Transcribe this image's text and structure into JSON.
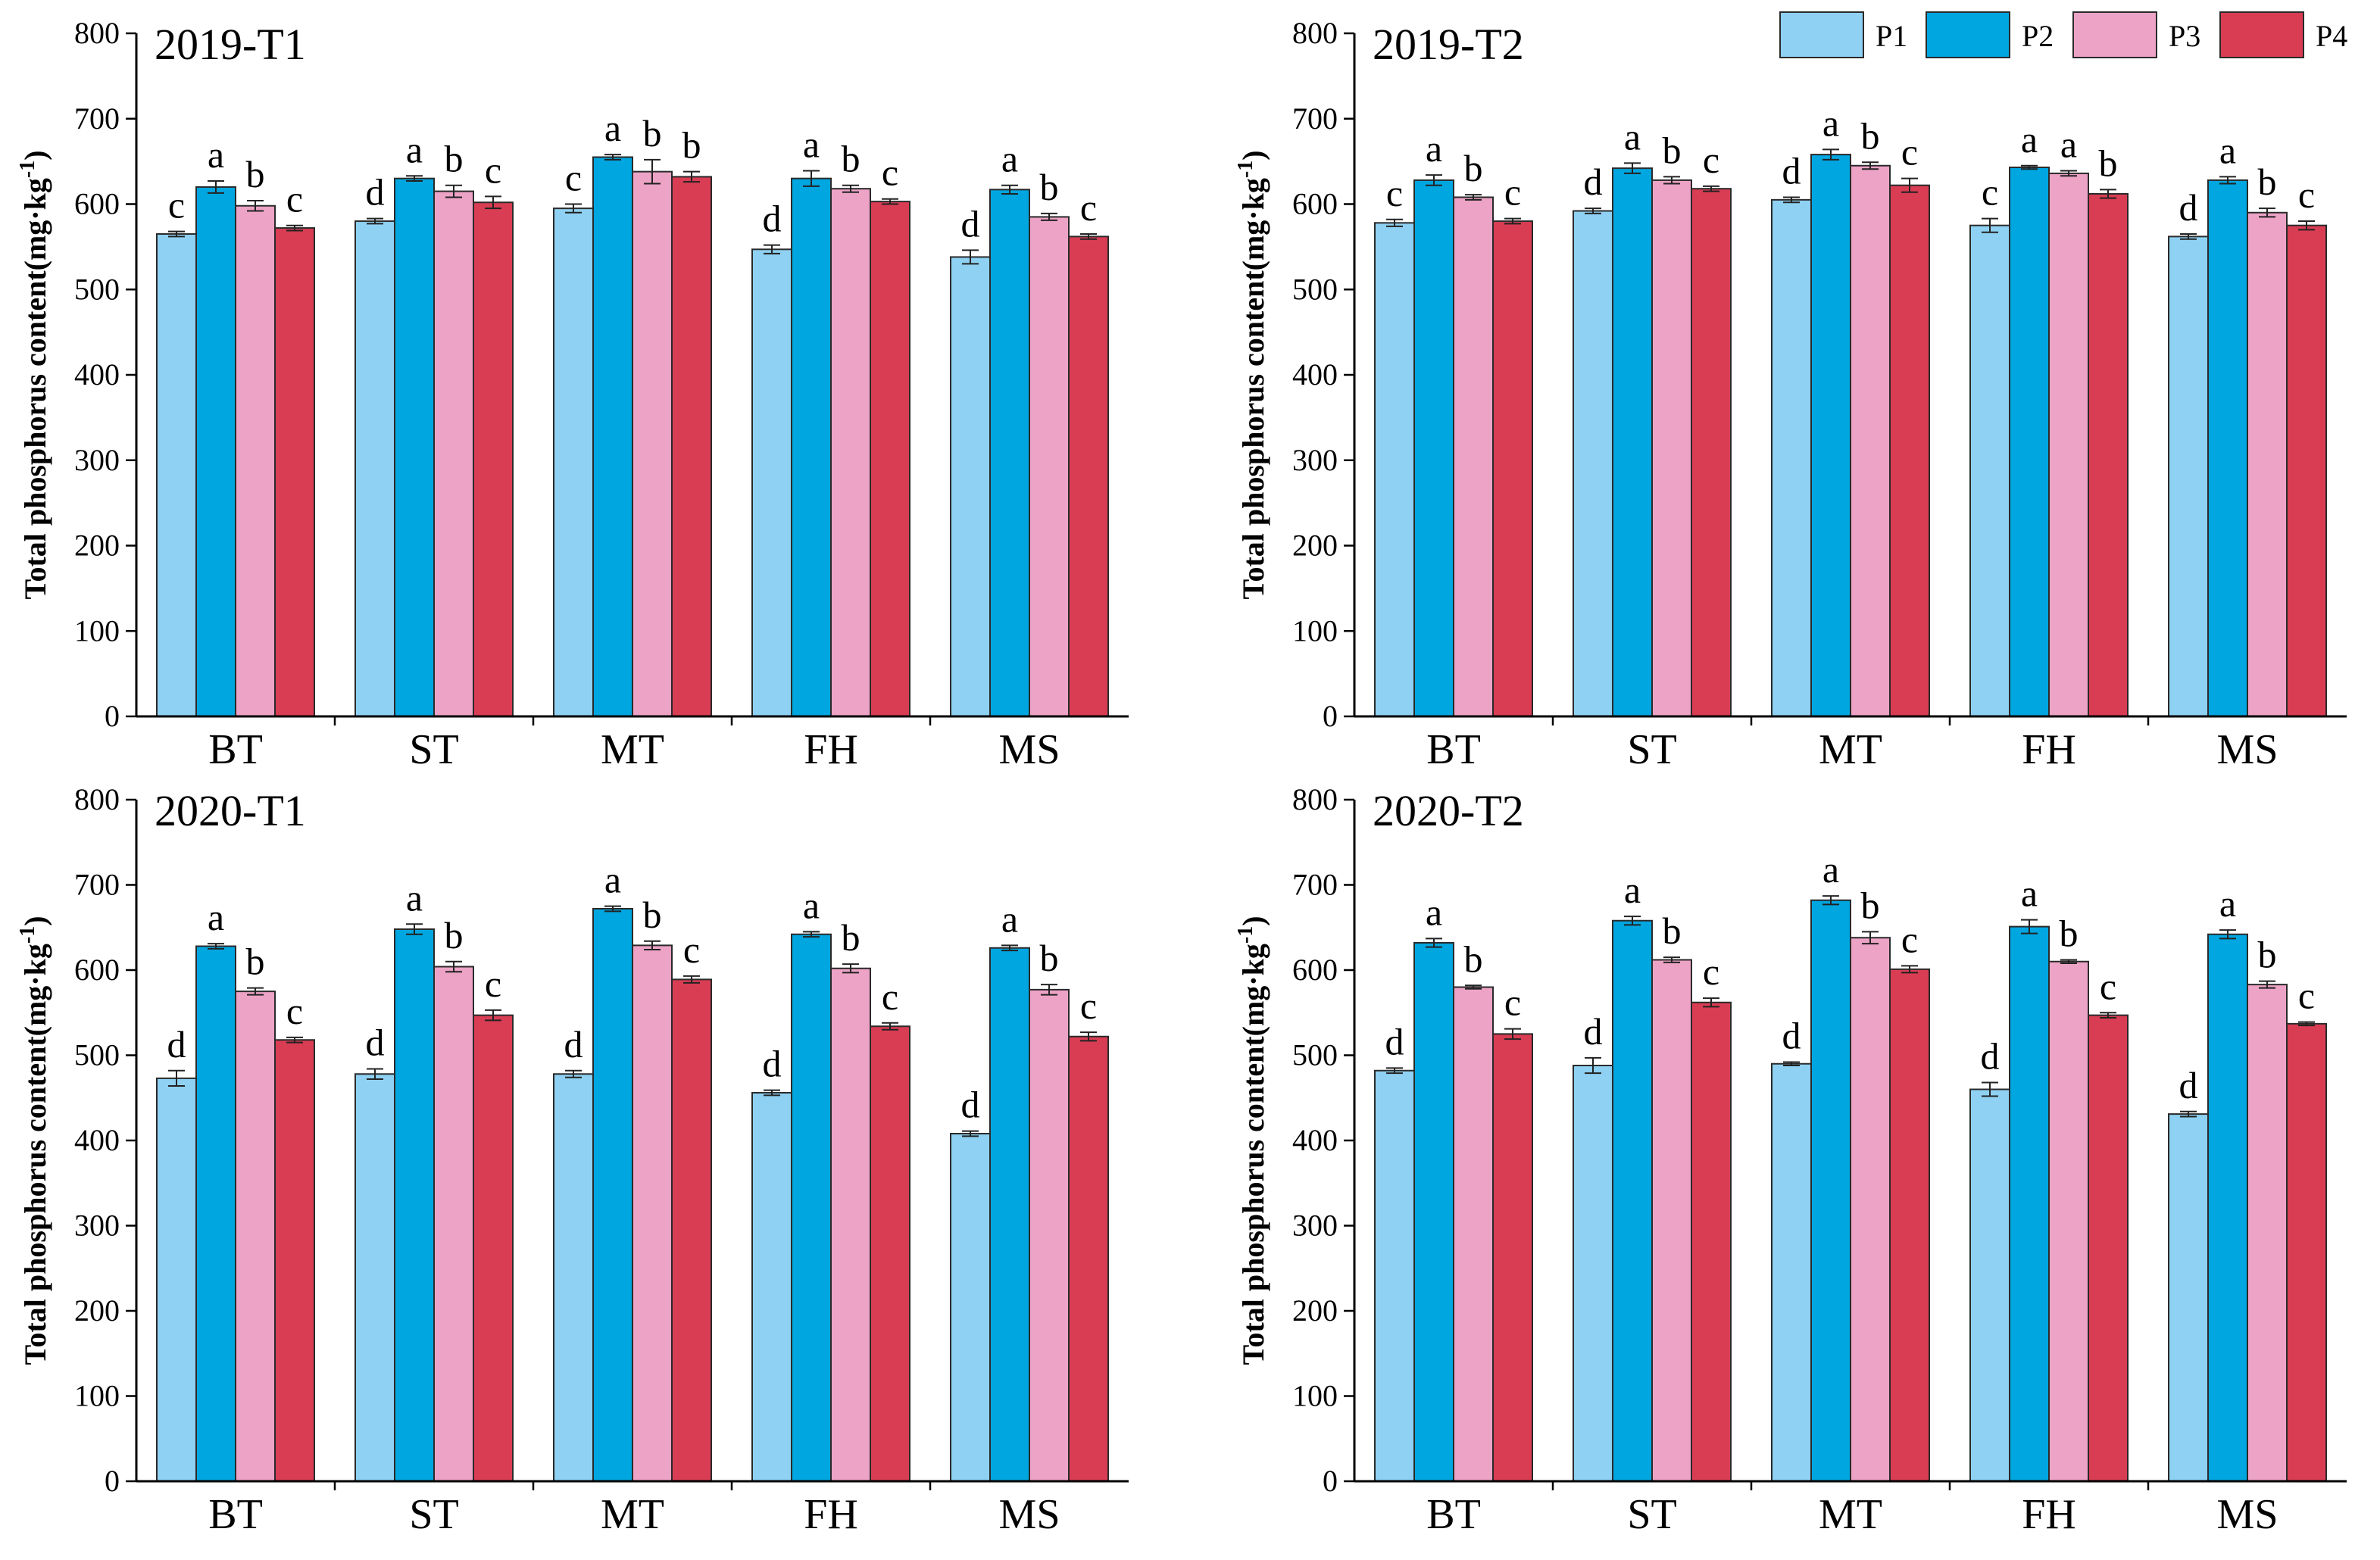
{
  "legend": {
    "entries": [
      "P1",
      "P2",
      "P3",
      "P4"
    ],
    "placement": "top-right"
  },
  "colors": {
    "P1": "#8fd1f2",
    "P2": "#00a6e0",
    "P3": "#eda3c6",
    "P4": "#d93d54"
  },
  "chart_data": [
    {
      "type": "bar",
      "title": "2019-T1",
      "ylabel": "Total phosphorus content(mg·kg⁻¹)",
      "ylim": [
        0,
        800
      ],
      "yticks": [
        0,
        100,
        200,
        300,
        400,
        500,
        600,
        700,
        800
      ],
      "categories": [
        "BT",
        "ST",
        "MT",
        "FH",
        "MS"
      ],
      "series": [
        {
          "name": "P1",
          "values": [
            565,
            580,
            595,
            547,
            538
          ],
          "errors": [
            3,
            3,
            5,
            5,
            8
          ],
          "labels": [
            "c",
            "d",
            "c",
            "d",
            "d"
          ]
        },
        {
          "name": "P2",
          "values": [
            620,
            630,
            655,
            630,
            617
          ],
          "errors": [
            7,
            3,
            3,
            9,
            5
          ],
          "labels": [
            "a",
            "a",
            "a",
            "a",
            "a"
          ]
        },
        {
          "name": "P3",
          "values": [
            598,
            615,
            638,
            618,
            585
          ],
          "errors": [
            6,
            7,
            14,
            4,
            4
          ],
          "labels": [
            "b",
            "b",
            "b",
            "b",
            "b"
          ]
        },
        {
          "name": "P4",
          "values": [
            572,
            602,
            632,
            603,
            562
          ],
          "errors": [
            3,
            7,
            6,
            3,
            3
          ],
          "labels": [
            "c",
            "c",
            "b",
            "c",
            "c"
          ]
        }
      ]
    },
    {
      "type": "bar",
      "title": "2019-T2",
      "ylabel": "Total phosphorus content(mg·kg⁻¹)",
      "ylim": [
        0,
        800
      ],
      "yticks": [
        0,
        100,
        200,
        300,
        400,
        500,
        600,
        700,
        800
      ],
      "categories": [
        "BT",
        "ST",
        "MT",
        "FH",
        "MS"
      ],
      "series": [
        {
          "name": "P1",
          "values": [
            578,
            592,
            605,
            575,
            562
          ],
          "errors": [
            4,
            3,
            3,
            8,
            3
          ],
          "labels": [
            "c",
            "d",
            "d",
            "c",
            "d"
          ]
        },
        {
          "name": "P2",
          "values": [
            628,
            642,
            658,
            643,
            628
          ],
          "errors": [
            6,
            6,
            6,
            2,
            4
          ],
          "labels": [
            "a",
            "a",
            "a",
            "a",
            "a"
          ]
        },
        {
          "name": "P3",
          "values": [
            608,
            628,
            645,
            636,
            590
          ],
          "errors": [
            3,
            4,
            4,
            3,
            5
          ],
          "labels": [
            "b",
            "b",
            "b",
            "a",
            "b"
          ]
        },
        {
          "name": "P4",
          "values": [
            580,
            618,
            622,
            612,
            575
          ],
          "errors": [
            3,
            3,
            8,
            5,
            5
          ],
          "labels": [
            "c",
            "c",
            "c",
            "b",
            "c"
          ]
        }
      ]
    },
    {
      "type": "bar",
      "title": "2020-T1",
      "ylabel": "Total phosphorus content(mg·kg⁻¹)",
      "ylim": [
        0,
        800
      ],
      "yticks": [
        0,
        100,
        200,
        300,
        400,
        500,
        600,
        700,
        800
      ],
      "categories": [
        "BT",
        "ST",
        "MT",
        "FH",
        "MS"
      ],
      "series": [
        {
          "name": "P1",
          "values": [
            473,
            478,
            478,
            456,
            408
          ],
          "errors": [
            9,
            6,
            4,
            3,
            3
          ],
          "labels": [
            "d",
            "d",
            "d",
            "d",
            "d"
          ]
        },
        {
          "name": "P2",
          "values": [
            628,
            648,
            672,
            642,
            626
          ],
          "errors": [
            3,
            6,
            3,
            3,
            3
          ],
          "labels": [
            "a",
            "a",
            "a",
            "a",
            "a"
          ]
        },
        {
          "name": "P3",
          "values": [
            575,
            604,
            629,
            602,
            577
          ],
          "errors": [
            4,
            6,
            5,
            5,
            6
          ],
          "labels": [
            "b",
            "b",
            "b",
            "b",
            "b"
          ]
        },
        {
          "name": "P4",
          "values": [
            518,
            547,
            589,
            534,
            522
          ],
          "errors": [
            3,
            6,
            4,
            4,
            5
          ],
          "labels": [
            "c",
            "c",
            "c",
            "c",
            "c"
          ]
        }
      ]
    },
    {
      "type": "bar",
      "title": "2020-T2",
      "ylabel": "Total phosphorus content(mg·kg⁻¹)",
      "ylim": [
        0,
        800
      ],
      "yticks": [
        0,
        100,
        200,
        300,
        400,
        500,
        600,
        700,
        800
      ],
      "categories": [
        "BT",
        "ST",
        "MT",
        "FH",
        "MS"
      ],
      "series": [
        {
          "name": "P1",
          "values": [
            482,
            488,
            490,
            460,
            431
          ],
          "errors": [
            3,
            9,
            2,
            8,
            3
          ],
          "labels": [
            "d",
            "d",
            "d",
            "d",
            "d"
          ]
        },
        {
          "name": "P2",
          "values": [
            632,
            658,
            682,
            651,
            642
          ],
          "errors": [
            5,
            5,
            5,
            8,
            5
          ],
          "labels": [
            "a",
            "a",
            "a",
            "a",
            "a"
          ]
        },
        {
          "name": "P3",
          "values": [
            580,
            612,
            638,
            610,
            583
          ],
          "errors": [
            2,
            3,
            7,
            2,
            4
          ],
          "labels": [
            "b",
            "b",
            "b",
            "b",
            "b"
          ]
        },
        {
          "name": "P4",
          "values": [
            525,
            562,
            601,
            547,
            537
          ],
          "errors": [
            6,
            5,
            4,
            3,
            2
          ],
          "labels": [
            "c",
            "c",
            "c",
            "c",
            "c"
          ]
        }
      ]
    }
  ]
}
